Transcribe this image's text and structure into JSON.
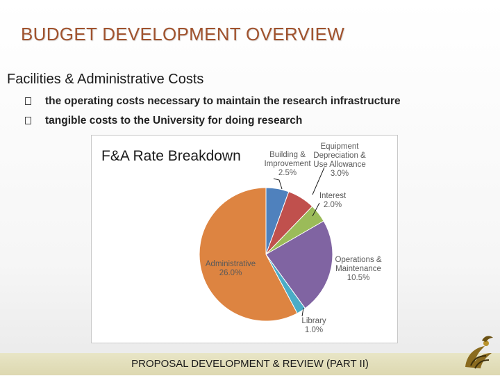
{
  "slide": {
    "title": "BUDGET DEVELOPMENT OVERVIEW",
    "subtitle": "Facilities & Administrative Costs",
    "bullets": [
      "the operating costs necessary to maintain the research infrastructure",
      "tangible costs to the University for doing research"
    ],
    "footer": "PROPOSAL DEVELOPMENT & REVIEW (PART II)",
    "logo_icon": "pegasus-logo-icon"
  },
  "chart_data": {
    "type": "pie",
    "title": "F&A Rate Breakdown",
    "slices": [
      {
        "name": "Building & Improvement",
        "value": 2.5,
        "label": "2.5%",
        "color": "#4f81bd",
        "label_lines": [
          "Building &",
          "Improvement",
          "2.5%"
        ]
      },
      {
        "name": "Equipment Depreciation & Use Allowance",
        "value": 3.0,
        "label": "3.0%",
        "color": "#c0504d",
        "label_lines": [
          "Equipment",
          "Depreciation &",
          "Use Allowance",
          "3.0%"
        ]
      },
      {
        "name": "Interest",
        "value": 2.0,
        "label": "2.0%",
        "color": "#9bbb59",
        "label_lines": [
          "Interest",
          "2.0%"
        ]
      },
      {
        "name": "Operations & Maintenance",
        "value": 10.5,
        "label": "10.5%",
        "color": "#8064a2",
        "label_lines": [
          "Operations &",
          "Maintenance",
          "10.5%"
        ]
      },
      {
        "name": "Library",
        "value": 1.0,
        "label": "1.0%",
        "color": "#4bacc6",
        "label_lines": [
          "Library",
          "1.0%"
        ]
      },
      {
        "name": "Administrative",
        "value": 26.0,
        "label": "26.0%",
        "color": "#dd8441",
        "label_lines": [
          "Administrative",
          "26.0%"
        ]
      }
    ],
    "start_angle_deg": 0,
    "direction": "clockwise",
    "legend": "none",
    "label_color": "#595959"
  }
}
